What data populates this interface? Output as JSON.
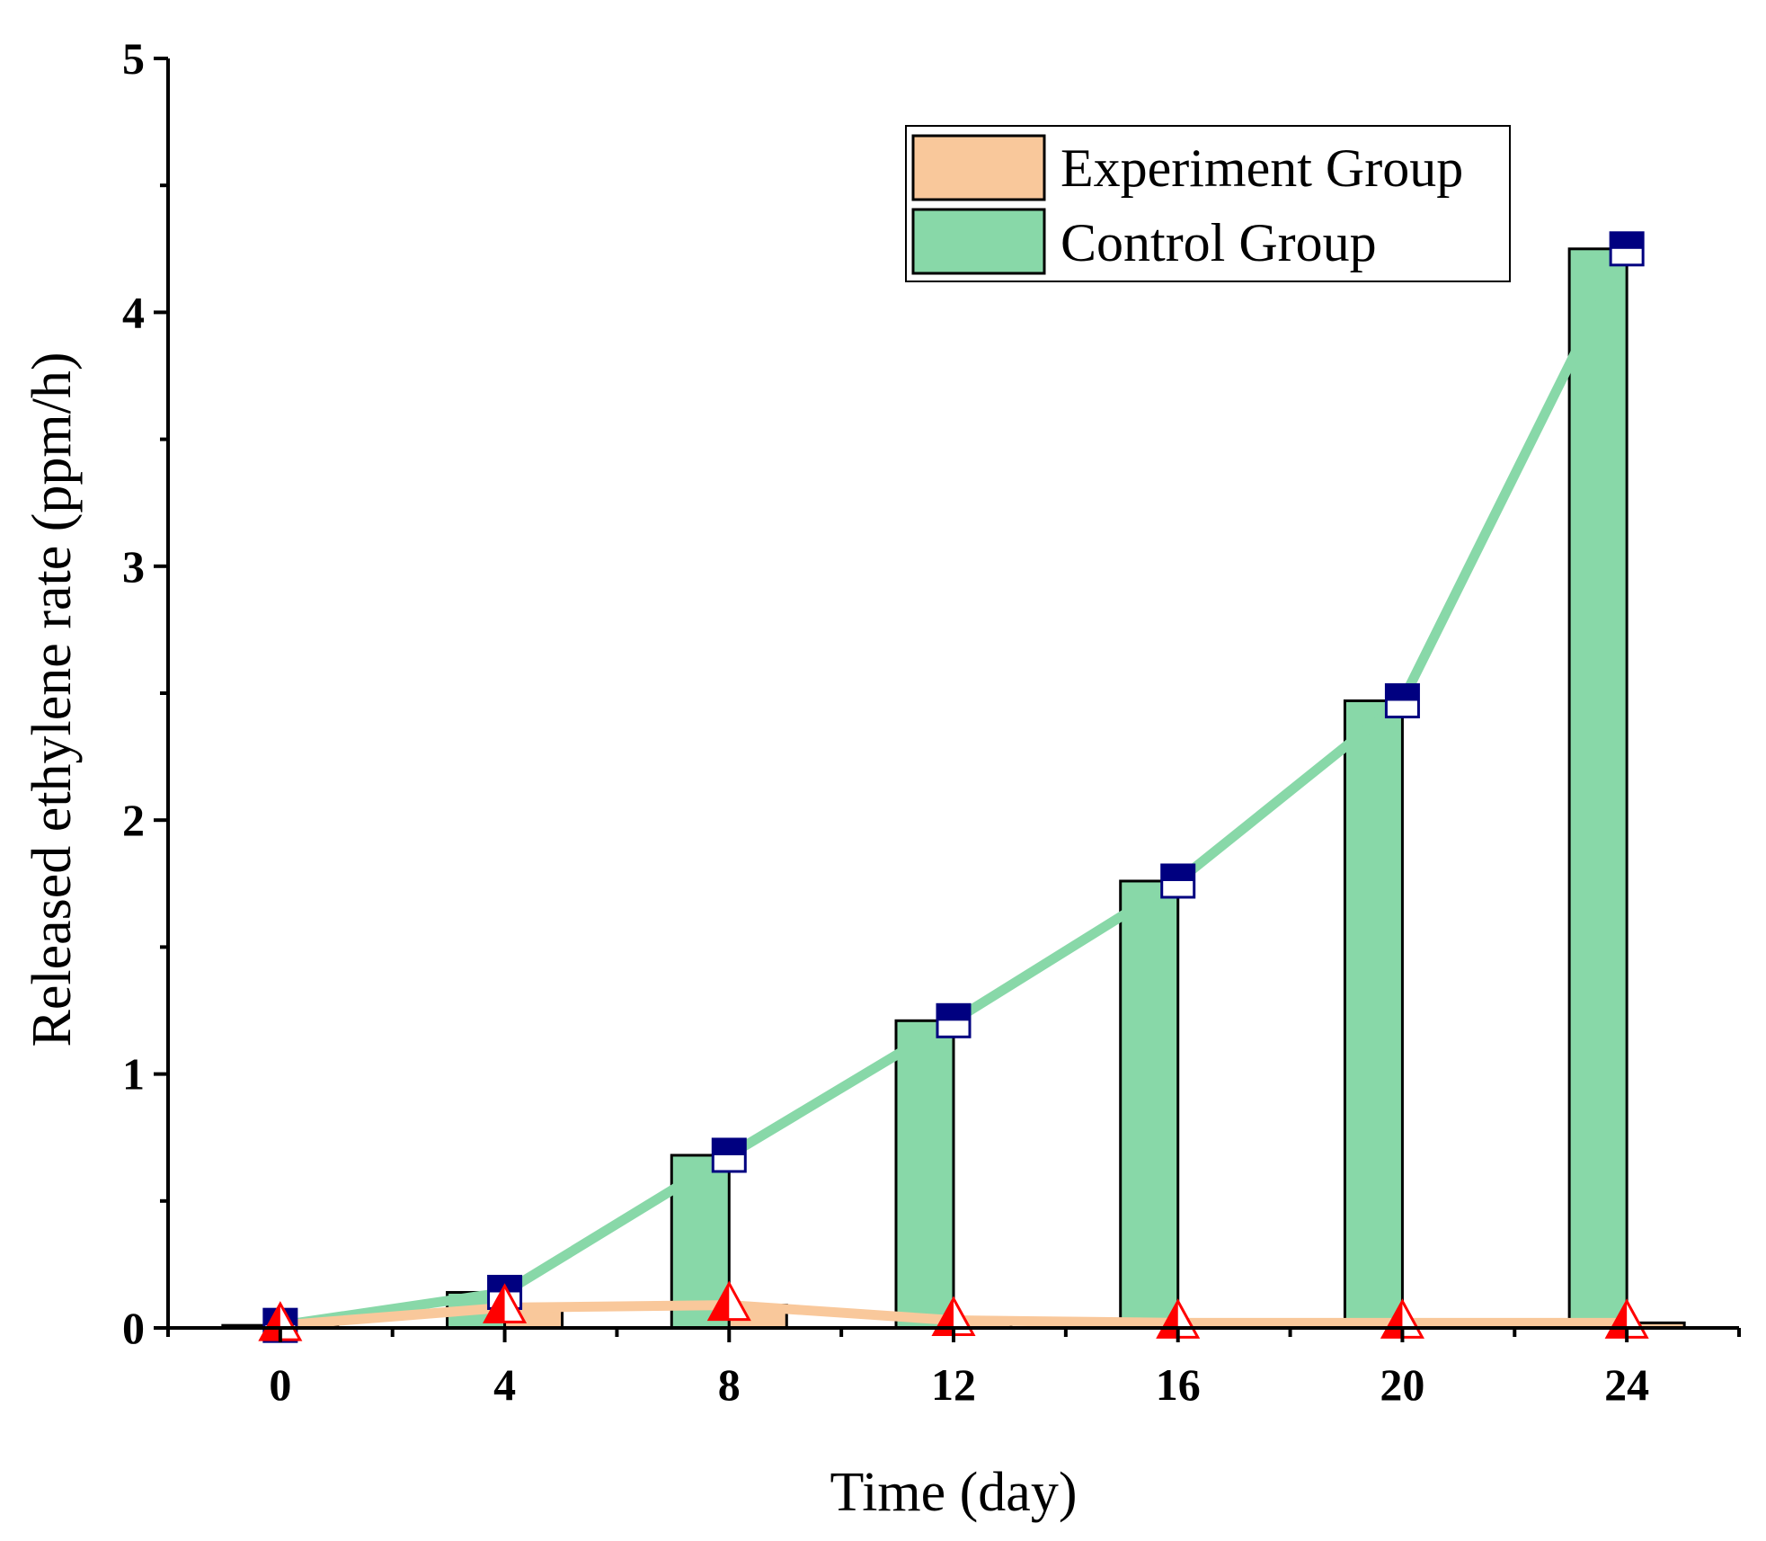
{
  "chart_data": {
    "type": "bar",
    "xlabel": "Time (day)",
    "ylabel": "Released ethylene rate (ppm/h)",
    "x": [
      0,
      4,
      8,
      12,
      16,
      20,
      24
    ],
    "xlim": [
      -2,
      26
    ],
    "ylim": [
      0,
      5
    ],
    "xticks": [
      0,
      4,
      8,
      12,
      16,
      20,
      24
    ],
    "yticks": [
      0,
      1,
      2,
      3,
      4,
      5
    ],
    "grid": false,
    "legend": "top-right",
    "series": [
      {
        "name": "Experiment Group",
        "color": "#f9c89b",
        "marker_color": "#ff0000",
        "marker": "triangle",
        "values": [
          0.01,
          0.08,
          0.09,
          0.03,
          0.02,
          0.02,
          0.02
        ]
      },
      {
        "name": "Control Group",
        "color": "#88d8a8",
        "marker_color": "#000080",
        "marker": "square",
        "values": [
          0.01,
          0.14,
          0.68,
          1.21,
          1.76,
          2.47,
          4.25
        ]
      }
    ]
  }
}
